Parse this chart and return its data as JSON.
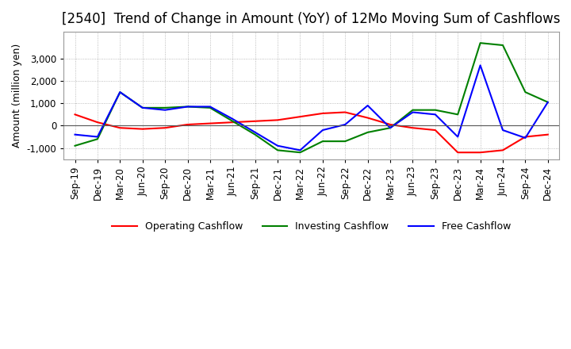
{
  "title": "[2540]  Trend of Change in Amount (YoY) of 12Mo Moving Sum of Cashflows",
  "ylabel": "Amount (million yen)",
  "x_labels": [
    "Sep-19",
    "Dec-19",
    "Mar-20",
    "Jun-20",
    "Sep-20",
    "Dec-20",
    "Mar-21",
    "Jun-21",
    "Sep-21",
    "Dec-21",
    "Mar-22",
    "Jun-22",
    "Sep-22",
    "Dec-22",
    "Mar-23",
    "Jun-23",
    "Sep-23",
    "Dec-23",
    "Mar-24",
    "Jun-24",
    "Sep-24",
    "Dec-24"
  ],
  "operating": [
    500,
    150,
    -100,
    -150,
    -100,
    50,
    100,
    150,
    200,
    250,
    400,
    550,
    600,
    350,
    50,
    -100,
    -200,
    -1200,
    -1200,
    -1100,
    -500,
    -400
  ],
  "investing": [
    -900,
    -600,
    1500,
    800,
    800,
    850,
    800,
    200,
    -400,
    -1100,
    -1200,
    -700,
    -700,
    -300,
    -100,
    700,
    700,
    500,
    3700,
    3600,
    1500,
    1050
  ],
  "free": [
    -400,
    -500,
    1500,
    800,
    700,
    850,
    850,
    300,
    -300,
    -900,
    -1100,
    -200,
    50,
    900,
    -100,
    600,
    500,
    -500,
    2700,
    -200,
    -550,
    1050
  ],
  "ylim": [
    -1500,
    4200
  ],
  "yticks": [
    -1000,
    0,
    1000,
    2000,
    3000
  ],
  "operating_color": "#ff0000",
  "investing_color": "#008000",
  "free_color": "#0000ff",
  "background_color": "#ffffff",
  "grid_color": "#aaaaaa",
  "title_fontsize": 12,
  "legend_fontsize": 9,
  "axis_label_fontsize": 9,
  "tick_fontsize": 8.5
}
